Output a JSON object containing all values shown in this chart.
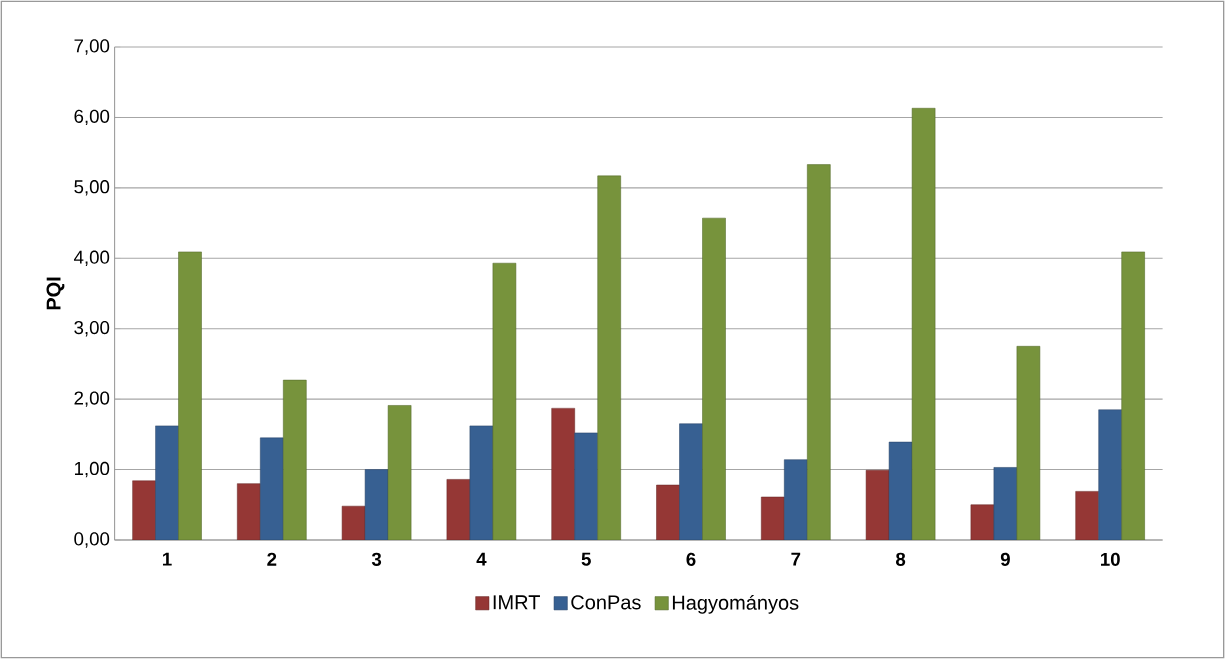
{
  "chart_data": {
    "type": "bar",
    "ylabel": "PQI",
    "categories": [
      "1",
      "2",
      "3",
      "4",
      "5",
      "6",
      "7",
      "8",
      "9",
      "10"
    ],
    "series": [
      {
        "name": "IMRT",
        "color": "#953735",
        "values": [
          0.84,
          0.8,
          0.48,
          0.86,
          1.87,
          0.78,
          0.61,
          0.99,
          0.5,
          0.69
        ]
      },
      {
        "name": "ConPas",
        "color": "#376092",
        "values": [
          1.62,
          1.45,
          1.0,
          1.62,
          1.52,
          1.65,
          1.14,
          1.39,
          1.03,
          1.85
        ]
      },
      {
        "name": "Hagyományos",
        "color": "#77933c",
        "values": [
          4.09,
          2.27,
          1.91,
          3.93,
          5.17,
          4.57,
          5.33,
          6.13,
          2.75,
          4.09
        ]
      }
    ],
    "ylim": [
      0,
      7
    ],
    "yticks": [
      {
        "value": 0,
        "label": "0,00"
      },
      {
        "value": 1,
        "label": "1,00"
      },
      {
        "value": 2,
        "label": "2,00"
      },
      {
        "value": 3,
        "label": "3,00"
      },
      {
        "value": 4,
        "label": "4,00"
      },
      {
        "value": 5,
        "label": "5,00"
      },
      {
        "value": 6,
        "label": "6,00"
      },
      {
        "value": 7,
        "label": "7,00"
      }
    ],
    "grid": "y",
    "legend": "bottom"
  }
}
